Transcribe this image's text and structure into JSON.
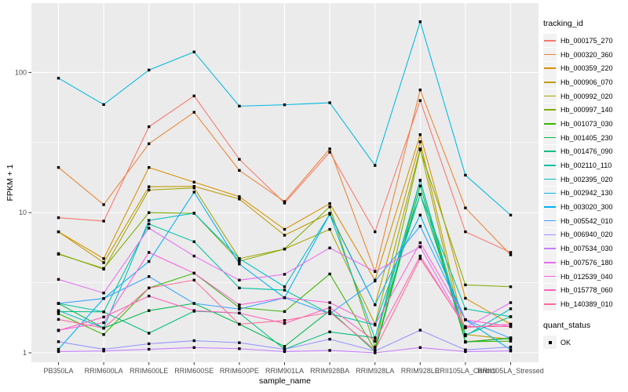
{
  "figure": {
    "background": "#FFFFFF"
  },
  "chart_data": {
    "type": "line",
    "title": "",
    "xlabel": "sample_name",
    "ylabel": "FPKM + 1",
    "y_scale": "log10",
    "ylim": [
      1,
      260
    ],
    "grid": true,
    "panel_bg": "#EBEBEB",
    "grid_color": "#FFFFFF",
    "tick_label_color": "#4D4D4D",
    "tick_mark_color": "#333333",
    "point_color": "#000000",
    "legend_position": "right",
    "y_ticks": [
      {
        "value": 1,
        "label": "1"
      },
      {
        "value": 10,
        "label": "10"
      },
      {
        "value": 100,
        "label": "100"
      }
    ],
    "y_minor_ticks": [
      3.162,
      31.62
    ],
    "x_categories": [
      "PB350LA",
      "RRIM600LA",
      "RRIM600LE",
      "RRIM600SE",
      "RRIM600PE",
      "RRIM901LA",
      "RRIM928BA",
      "RRIM928LA",
      "RRIM928LE",
      "RRII105LA_Control",
      "RRII105LA_Stressed"
    ],
    "legend": {
      "title": "tracking_id"
    },
    "legend2": {
      "title": "quant_status",
      "items": [
        {
          "label": "OK",
          "symbol": "black-point"
        }
      ]
    },
    "series": [
      {
        "name": "Hb_000175_270",
        "color": "#F8766D",
        "values": [
          9.2,
          8.7,
          41,
          68,
          24,
          11.7,
          27,
          7.3,
          63,
          7.3,
          5.2
        ]
      },
      {
        "name": "Hb_000320_360",
        "color": "#EA8331",
        "values": [
          21,
          11.4,
          31,
          52,
          20,
          12,
          28.5,
          3.8,
          75,
          10.8,
          5.0
        ]
      },
      {
        "name": "Hb_000359_220",
        "color": "#D89000",
        "values": [
          7.3,
          4.7,
          21,
          16.5,
          13,
          7.6,
          11.6,
          3.3,
          36,
          2.45,
          1.6
        ]
      },
      {
        "name": "Hb_000906_070",
        "color": "#C09B00",
        "values": [
          7.3,
          4.4,
          15.3,
          15.4,
          12.5,
          6.9,
          9.9,
          2.2,
          32,
          1.35,
          1.25
        ]
      },
      {
        "name": "Hb_000992_020",
        "color": "#A3A500",
        "values": [
          5.1,
          3.95,
          14.5,
          15.0,
          4.7,
          5.5,
          7.6,
          1.6,
          28.5,
          1.2,
          1.28
        ]
      },
      {
        "name": "Hb_000997_140",
        "color": "#7CAE00",
        "values": [
          5.05,
          4.0,
          10.0,
          9.9,
          4.5,
          5.5,
          11.0,
          1.1,
          28,
          3.05,
          2.96
        ]
      },
      {
        "name": "Hb_001073_030",
        "color": "#39B600",
        "values": [
          1.9,
          1.35,
          2.9,
          3.7,
          2.1,
          1.97,
          3.65,
          1.05,
          17,
          1.2,
          1.21
        ]
      },
      {
        "name": "Hb_001405_230",
        "color": "#00BB4E",
        "values": [
          2.25,
          1.5,
          2.0,
          2.25,
          1.6,
          1.11,
          2.0,
          1.02,
          15.5,
          1.19,
          1.27
        ]
      },
      {
        "name": "Hb_001476_090",
        "color": "#00BF7D",
        "values": [
          1.97,
          1.96,
          1.38,
          1.98,
          1.92,
          1.06,
          1.41,
          1.28,
          13.5,
          1.34,
          1.81
        ]
      },
      {
        "name": "Hb_002110_110",
        "color": "#00C1A3",
        "values": [
          2.25,
          1.96,
          8.3,
          6.2,
          2.9,
          2.8,
          1.9,
          1.58,
          13.5,
          2.06,
          1.81
        ]
      },
      {
        "name": "Hb_002395_020",
        "color": "#00BFC4",
        "values": [
          2.0,
          1.5,
          8.8,
          9.9,
          4.7,
          2.96,
          9.75,
          1.27,
          17,
          1.32,
          2.06
        ]
      },
      {
        "name": "Hb_002942_130",
        "color": "#00BAE0",
        "values": [
          91,
          59,
          104,
          140,
          57.5,
          58.8,
          60.8,
          21.7,
          230,
          18.5,
          9.6
        ]
      },
      {
        "name": "Hb_003020_300",
        "color": "#00B0F6",
        "values": [
          1.06,
          2.44,
          4.48,
          14,
          4.3,
          2.47,
          9.75,
          2.2,
          9.6,
          1.72,
          1.05
        ]
      },
      {
        "name": "Hb_005542_010",
        "color": "#35A2FF",
        "values": [
          2.25,
          2.44,
          3.5,
          2.25,
          2.05,
          2.47,
          1.9,
          3.25,
          8.0,
          1.72,
          1.27
        ]
      },
      {
        "name": "Hb_006940_020",
        "color": "#9590FF",
        "values": [
          1.2,
          1.06,
          1.16,
          1.22,
          1.18,
          1.06,
          1.25,
          1.03,
          1.45,
          1.05,
          1.1
        ]
      },
      {
        "name": "Hb_007534_030",
        "color": "#C77CFF",
        "values": [
          1.02,
          1.03,
          1.06,
          1.09,
          1.07,
          1.02,
          1.04,
          1.0,
          1.09,
          1.02,
          1.03
        ]
      },
      {
        "name": "Hb_007576_180",
        "color": "#E76BF3",
        "values": [
          3.34,
          2.67,
          7.75,
          4.9,
          3.3,
          3.63,
          5.6,
          3.8,
          5.7,
          1.51,
          2.28
        ]
      },
      {
        "name": "Hb_012539_040",
        "color": "#FA62DB",
        "values": [
          1.45,
          1.64,
          5.2,
          3.7,
          2.2,
          2.47,
          2.28,
          1.58,
          6.1,
          1.72,
          1.54
        ]
      },
      {
        "name": "Hb_015778_060",
        "color": "#FF62BC",
        "values": [
          1.44,
          1.8,
          2.54,
          2.0,
          1.92,
          1.62,
          2.1,
          1.21,
          4.9,
          1.51,
          1.6
        ]
      },
      {
        "name": "Hb_140389_010",
        "color": "#FF6A98",
        "values": [
          1.73,
          1.5,
          2.9,
          3.3,
          1.6,
          1.7,
          1.95,
          1.05,
          4.7,
          1.54,
          1.54
        ]
      }
    ]
  }
}
